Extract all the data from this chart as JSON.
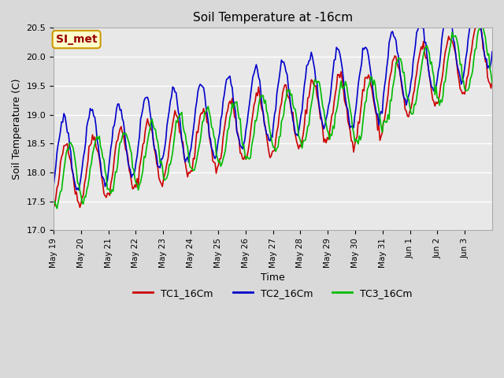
{
  "title": "Soil Temperature at -16cm",
  "xlabel": "Time",
  "ylabel": "Soil Temperature (C)",
  "ylim": [
    17.0,
    20.5
  ],
  "annotation_text": "SI_met",
  "annotation_bg": "#ffffcc",
  "annotation_border": "#cc9900",
  "annotation_text_color": "#990000",
  "line_colors": {
    "TC1_16Cm": "#cc0000",
    "TC2_16Cm": "#0000cc",
    "TC3_16Cm": "#00bb00"
  },
  "legend_labels": [
    "TC1_16Cm",
    "TC2_16Cm",
    "TC3_16Cm"
  ],
  "xtick_labels": [
    "May 19",
    "May 20",
    "May 21",
    "May 22",
    "May 23",
    "May 24",
    "May 25",
    "May 26",
    "May 27",
    "May 28",
    "May 29",
    "May 30",
    "May 31",
    "Jun 1",
    "Jun 2",
    "Jun 3"
  ],
  "ytick_values": [
    17.0,
    17.5,
    18.0,
    18.5,
    19.0,
    19.5,
    20.0,
    20.5
  ],
  "grid_color": "#ffffff",
  "grid_linewidth": 1.0,
  "n_days": 16
}
